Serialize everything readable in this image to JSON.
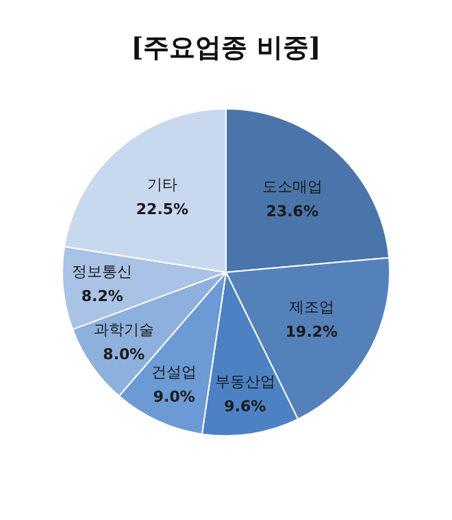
{
  "chart_data": {
    "type": "pie",
    "title": "[주요업종 비중]",
    "categories": [
      "도소매업",
      "제조업",
      "부동산업",
      "건설업",
      "과학기술",
      "정보통신",
      "기타"
    ],
    "values": [
      23.6,
      19.2,
      9.6,
      9.0,
      8.0,
      8.2,
      22.5
    ],
    "value_labels": [
      "23.6%",
      "19.2%",
      "9.6%",
      "9.0%",
      "8.0%",
      "8.2%",
      "22.5%"
    ],
    "colors": [
      "#4a75ab",
      "#5581bb",
      "#4c82c4",
      "#6b9ad5",
      "#8eb0dc",
      "#a9c2e5",
      "#c8d8ef"
    ],
    "legend": false
  }
}
